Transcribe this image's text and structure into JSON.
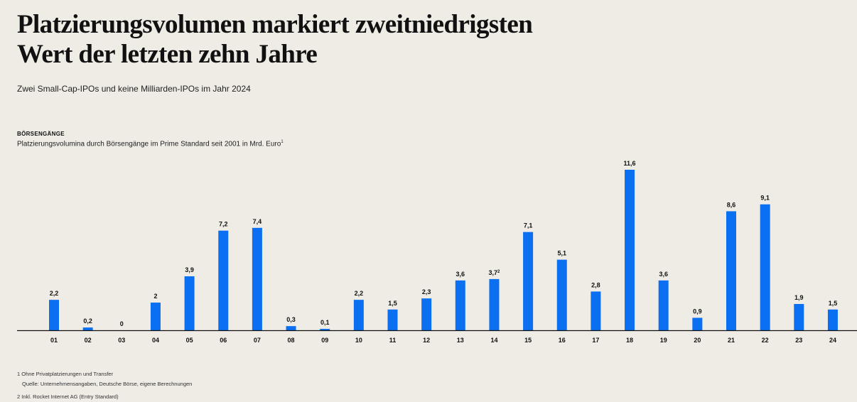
{
  "title": {
    "line1": "Platzierungsvolumen markiert zweitniedrigsten",
    "line2": "Wert der letzten zehn Jahre"
  },
  "subtitle": "Zwei Small-Cap-IPOs und keine Milliarden-IPOs im Jahr 2024",
  "section": {
    "label": "BÖRSENGÄNGE",
    "description": "Platzierungsvolumina durch Börsengänge im Prime Standard seit 2001 in Mrd. Euro",
    "description_sup": "1"
  },
  "footnotes": {
    "note1": "1 Ohne Privatplatzierungen und Transfer",
    "source": "Quelle: Unternehmensangaben, Deutsche Börse, eigene Berechnungen",
    "note2": "2 Inkl. Rocket Internet AG (Entry Standard)"
  },
  "colors": {
    "bar": "#0a6ff0",
    "axis": "#111111",
    "background": "#efebe5"
  },
  "chart_data": {
    "type": "bar",
    "categories": [
      "01",
      "02",
      "03",
      "04",
      "05",
      "06",
      "07",
      "08",
      "09",
      "10",
      "11",
      "12",
      "13",
      "14",
      "15",
      "16",
      "17",
      "18",
      "19",
      "20",
      "21",
      "22",
      "23",
      "24"
    ],
    "values": [
      2.2,
      0.2,
      0,
      2,
      3.9,
      7.2,
      7.4,
      0.3,
      0.1,
      2.2,
      1.5,
      2.3,
      3.6,
      3.7,
      7.1,
      5.1,
      2.8,
      11.6,
      3.6,
      0.9,
      8.6,
      9.1,
      1.9,
      1.5
    ],
    "data_labels": [
      "2,2",
      "0,2",
      "0",
      "2",
      "3,9",
      "7,2",
      "7,4",
      "0,3",
      "0,1",
      "2,2",
      "1,5",
      "2,3",
      "3,6",
      "3,7",
      "7,1",
      "5,1",
      "2,8",
      "11,6",
      "3,6",
      "0,9",
      "8,6",
      "9,1",
      "1,9",
      "1,5"
    ],
    "label_superscripts": {
      "14": "2"
    },
    "title": "BÖRSENGÄNGE",
    "xlabel": "",
    "ylabel": "",
    "unit": "Mrd. Euro",
    "ylim": [
      0,
      11.6
    ],
    "grid": false,
    "legend": "none"
  }
}
